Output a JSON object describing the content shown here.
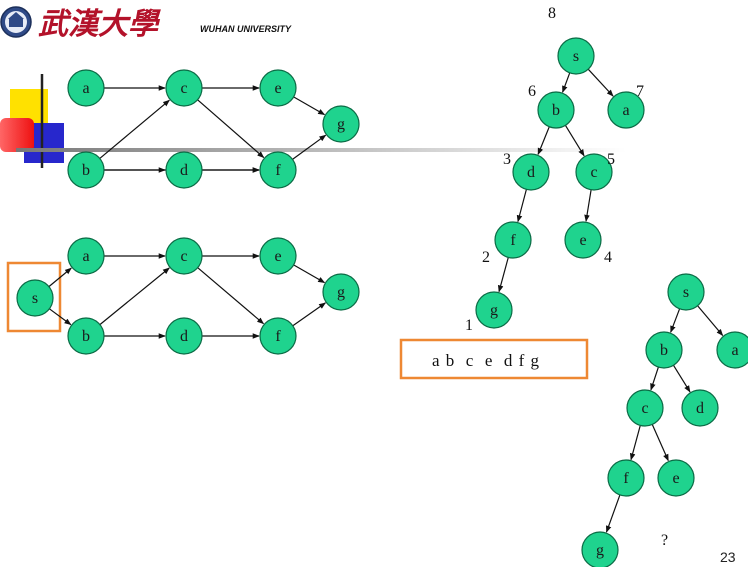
{
  "header": {
    "logo_cn": "武漢大學",
    "logo_en": "WUHAN UNIVERSITY"
  },
  "colors": {
    "node_fill": "#1fd38e",
    "node_stroke": "#0b6b45",
    "edge": "#111111",
    "highlight_box": "#ee8833",
    "deco_yellow": "#ffe100",
    "deco_red": "#ff2a2a",
    "deco_blue": "#2727cc"
  },
  "graph_top": {
    "nodes": [
      "a",
      "b",
      "c",
      "d",
      "e",
      "f",
      "g"
    ],
    "edges": [
      [
        "a",
        "c"
      ],
      [
        "b",
        "c"
      ],
      [
        "b",
        "d"
      ],
      [
        "b",
        "f"
      ],
      [
        "c",
        "e"
      ],
      [
        "c",
        "f"
      ],
      [
        "d",
        "f"
      ],
      [
        "e",
        "g"
      ],
      [
        "f",
        "g"
      ]
    ]
  },
  "graph_bottom": {
    "nodes": [
      "s",
      "a",
      "b",
      "c",
      "d",
      "e",
      "f",
      "g"
    ],
    "edges": [
      [
        "s",
        "a"
      ],
      [
        "s",
        "b"
      ],
      [
        "a",
        "c"
      ],
      [
        "b",
        "c"
      ],
      [
        "b",
        "d"
      ],
      [
        "c",
        "e"
      ],
      [
        "c",
        "f"
      ],
      [
        "d",
        "f"
      ],
      [
        "e",
        "g"
      ],
      [
        "f",
        "g"
      ]
    ]
  },
  "tree_right_top": {
    "nodes": [
      {
        "id": "s1",
        "label": "s",
        "number": "8"
      },
      {
        "id": "b1",
        "label": "b",
        "number": "6"
      },
      {
        "id": "a1",
        "label": "a",
        "number": "7"
      },
      {
        "id": "d1",
        "label": "d",
        "number": "3"
      },
      {
        "id": "c1",
        "label": "c",
        "number": "5"
      },
      {
        "id": "f1",
        "label": "f",
        "number": "2"
      },
      {
        "id": "e1",
        "label": "e",
        "number": "4"
      },
      {
        "id": "g1",
        "label": "g",
        "number": "1"
      }
    ],
    "edges": [
      [
        "s1",
        "b1"
      ],
      [
        "s1",
        "a1"
      ],
      [
        "b1",
        "d1"
      ],
      [
        "b1",
        "c1"
      ],
      [
        "d1",
        "f1"
      ],
      [
        "c1",
        "e1"
      ],
      [
        "f1",
        "g1"
      ]
    ]
  },
  "tree_right_bottom": {
    "nodes": [
      {
        "id": "s2",
        "label": "s"
      },
      {
        "id": "b2",
        "label": "b"
      },
      {
        "id": "a2",
        "label": "a"
      },
      {
        "id": "c2",
        "label": "c"
      },
      {
        "id": "d2",
        "label": "d"
      },
      {
        "id": "f2",
        "label": "f"
      },
      {
        "id": "e2",
        "label": "e"
      },
      {
        "id": "g2",
        "label": "g"
      }
    ],
    "edges": [
      [
        "s2",
        "b2"
      ],
      [
        "s2",
        "a2"
      ],
      [
        "b2",
        "c2"
      ],
      [
        "b2",
        "d2"
      ],
      [
        "c2",
        "f2"
      ],
      [
        "c2",
        "e2"
      ],
      [
        "f2",
        "g2"
      ]
    ],
    "question": "?"
  },
  "topological_sequence": "a b  c  e  d f g",
  "page_number": "23"
}
